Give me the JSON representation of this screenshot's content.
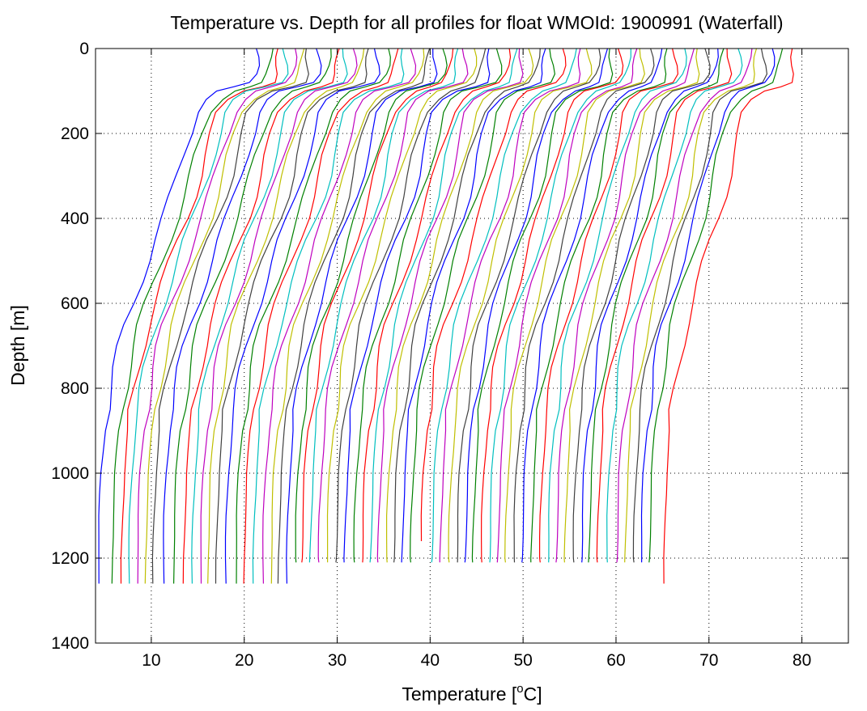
{
  "chart_data": {
    "type": "line",
    "title": "Temperature vs. Depth for all profiles for float WMOId: 1900991 (Waterfall)",
    "xlabel_prefix": "Temperature [",
    "xlabel_sup": "o",
    "xlabel_suffix": "C]",
    "ylabel": "Depth [m]",
    "xlim": [
      4,
      85
    ],
    "ylim": [
      0,
      1400
    ],
    "y_reversed": true,
    "grid": true,
    "x_ticks": [
      10,
      20,
      30,
      40,
      50,
      60,
      70,
      80
    ],
    "y_ticks": [
      0,
      200,
      400,
      600,
      800,
      1000,
      1200,
      1400
    ],
    "color_cycle": [
      "#0000ff",
      "#008000",
      "#ff0000",
      "#00bfbf",
      "#bf00bf",
      "#bfbf00",
      "#404040"
    ],
    "profile_depths": [
      0,
      20,
      40,
      60,
      80,
      90,
      100,
      120,
      150,
      200,
      250,
      300,
      350,
      400,
      450,
      500,
      550,
      600,
      650,
      700,
      750,
      800,
      850,
      900,
      950,
      1000,
      1050,
      1100,
      1150,
      1200,
      1260
    ],
    "base_profile_shape": [
      17.0,
      17.0,
      17.0,
      16.9,
      16.4,
      14.9,
      13.0,
      11.6,
      10.5,
      9.8,
      9.1,
      8.5,
      7.8,
      7.0,
      6.1,
      5.3,
      4.5,
      3.7,
      2.9,
      2.3,
      1.8,
      1.4,
      1.0,
      0.7,
      0.5,
      0.3,
      0.2,
      0.1,
      0.05,
      0.0,
      0.0
    ],
    "profile_offsets": [
      4.3,
      5.8,
      6.8,
      7.6,
      8.5,
      9.4,
      10.2,
      11.3,
      12.4,
      13.5,
      14.4,
      15.3,
      16.1,
      17.0,
      18.0,
      19.1,
      20.0,
      21.0,
      22.0,
      22.9,
      23.7,
      24.6,
      25.5,
      26.2,
      27.1,
      28.0,
      28.9,
      29.9,
      30.8,
      31.8,
      32.7,
      33.6,
      34.4,
      35.3,
      36.1,
      37.0,
      37.9,
      39.0,
      40.2,
      41.1,
      42.0,
      42.9,
      43.8,
      44.6,
      45.5,
      46.4,
      47.3,
      48.1,
      49.0,
      49.9,
      50.9,
      51.8,
      52.7,
      53.6,
      54.5,
      55.4,
      56.3,
      57.1,
      58.0,
      59.0,
      60.1,
      61.0,
      61.9,
      62.7,
      63.6,
      65.2
    ],
    "profile_end_depths": [
      1260,
      1260,
      1260,
      1260,
      1260,
      1260,
      1260,
      1260,
      1260,
      1260,
      1260,
      1260,
      1260,
      1260,
      1260,
      1260,
      1260,
      1260,
      1260,
      1260,
      1260,
      1260,
      1210,
      1210,
      1210,
      1210,
      1210,
      1210,
      1210,
      1210,
      1210,
      1210,
      1210,
      1210,
      1210,
      1210,
      1210,
      1160,
      1210,
      1210,
      1210,
      1210,
      1210,
      1210,
      1210,
      1210,
      1210,
      1210,
      1210,
      1210,
      1210,
      1210,
      1210,
      1210,
      1210,
      1210,
      1210,
      1210,
      1210,
      1210,
      1210,
      1210,
      1210,
      1210,
      1210,
      1260
    ]
  }
}
